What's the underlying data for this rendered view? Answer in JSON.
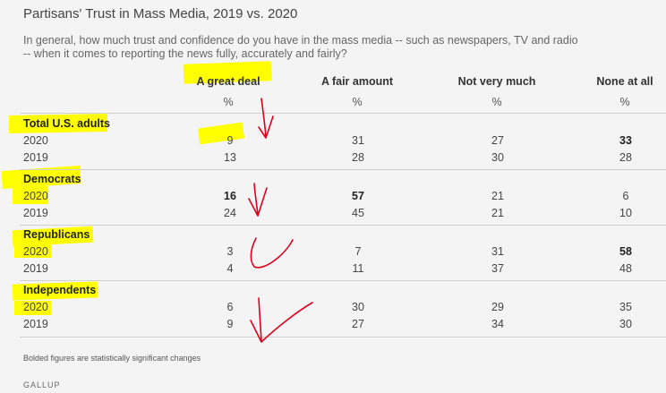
{
  "title": "Partisans' Trust in Mass Media, 2019 vs. 2020",
  "subtitle": "In general, how much trust and confidence do you have in the mass media -- such as newspapers, TV and radio -- when it comes to reporting the news fully, accurately and fairly?",
  "columns": [
    "A great deal",
    "A fair amount",
    "Not very much",
    "None at all"
  ],
  "unit": "%",
  "groups": [
    {
      "name": "Total U.S. adults",
      "rows": [
        {
          "year": "2020",
          "values": [
            "9",
            "31",
            "27",
            "33"
          ]
        },
        {
          "year": "2019",
          "values": [
            "13",
            "28",
            "30",
            "28"
          ]
        }
      ]
    },
    {
      "name": "Democrats",
      "rows": [
        {
          "year": "2020",
          "values": [
            "16",
            "57",
            "21",
            "6"
          ]
        },
        {
          "year": "2019",
          "values": [
            "24",
            "45",
            "21",
            "10"
          ]
        }
      ]
    },
    {
      "name": "Republicans",
      "rows": [
        {
          "year": "2020",
          "values": [
            "3",
            "7",
            "31",
            "58"
          ]
        },
        {
          "year": "2019",
          "values": [
            "4",
            "11",
            "37",
            "48"
          ]
        }
      ]
    },
    {
      "name": "Independents",
      "rows": [
        {
          "year": "2020",
          "values": [
            "6",
            "30",
            "29",
            "35"
          ]
        },
        {
          "year": "2019",
          "values": [
            "9",
            "27",
            "34",
            "30"
          ]
        }
      ]
    }
  ],
  "note": "Bolded figures are statistically significant changes",
  "source": "GALLUP",
  "colors": {
    "highlight": "#ffff00",
    "annotation": "#e0001b"
  }
}
